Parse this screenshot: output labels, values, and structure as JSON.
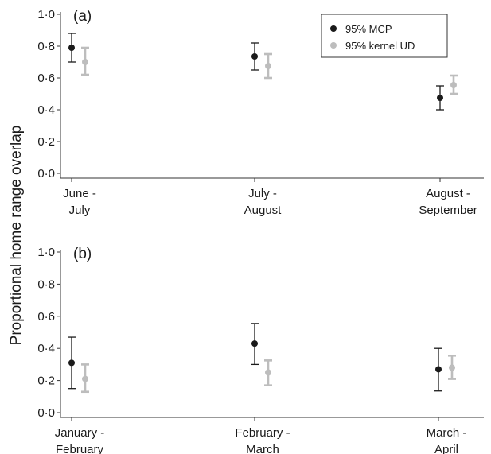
{
  "chart_data": {
    "type": "scatter",
    "ylabel": "Proportional home range overlap",
    "legend": {
      "placement": "top-right of panel (a)",
      "entries": [
        {
          "name": "95% MCP",
          "color": "#1a1a1a"
        },
        {
          "name": "95% kernel UD",
          "color": "#bdbdbd"
        }
      ]
    },
    "colors": {
      "mcp": "#1a1a1a",
      "kernel": "#bdbdbd",
      "axis": "#333333"
    },
    "panels": [
      {
        "label": "(a)",
        "ylim": [
          0,
          1
        ],
        "yticks": [
          "0·0",
          "0·2",
          "0·4",
          "0·6",
          "0·8",
          "1·0"
        ],
        "categories": [
          [
            "June -",
            "July"
          ],
          [
            "July -",
            "August"
          ],
          [
            "August -",
            "September"
          ]
        ],
        "series": [
          {
            "name": "95% MCP",
            "mean": [
              0.79,
              0.735,
              0.475
            ],
            "lower": [
              0.7,
              0.65,
              0.4
            ],
            "upper": [
              0.88,
              0.82,
              0.55
            ]
          },
          {
            "name": "95% kernel UD",
            "mean": [
              0.7,
              0.675,
              0.555
            ],
            "lower": [
              0.62,
              0.6,
              0.5
            ],
            "upper": [
              0.79,
              0.75,
              0.615
            ]
          }
        ]
      },
      {
        "label": "(b)",
        "ylim": [
          0,
          1
        ],
        "yticks": [
          "0·0",
          "0·2",
          "0·4",
          "0·6",
          "0·8",
          "1·0"
        ],
        "categories": [
          [
            "January -",
            "February"
          ],
          [
            "February -",
            "March"
          ],
          [
            "March -",
            "April"
          ]
        ],
        "series": [
          {
            "name": "95% MCP",
            "mean": [
              0.31,
              0.43,
              0.27
            ],
            "lower": [
              0.15,
              0.3,
              0.135
            ],
            "upper": [
              0.47,
              0.555,
              0.4
            ]
          },
          {
            "name": "95% kernel UD",
            "mean": [
              0.21,
              0.25,
              0.28
            ],
            "lower": [
              0.13,
              0.17,
              0.21
            ],
            "upper": [
              0.3,
              0.325,
              0.355
            ]
          }
        ]
      }
    ]
  }
}
